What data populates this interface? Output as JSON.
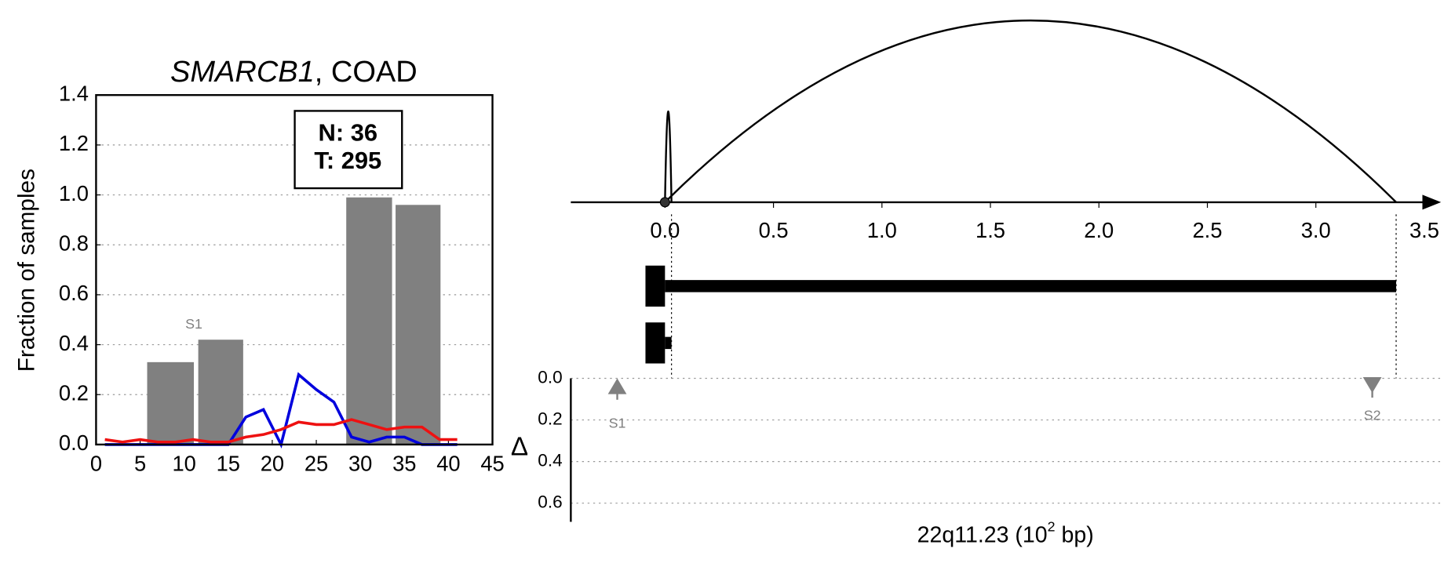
{
  "chart_data": [
    {
      "type": "bar_line",
      "title": [
        "SMARCB1",
        ", COAD"
      ],
      "ylabel": "Fraction of samples",
      "annotation_lines": [
        "N: 36",
        "T: 295"
      ],
      "bar_annotation": {
        "text": "S1",
        "x": 11.1,
        "y": 0.48
      },
      "bar_edges": [
        [
          5.8,
          11.1
        ],
        [
          11.6,
          16.7
        ],
        [
          28.4,
          33.6
        ],
        [
          34.0,
          39.1
        ]
      ],
      "bar_values": [
        0.33,
        0.42,
        0.99,
        0.96
      ],
      "bar_color": "#808080",
      "x": [
        1,
        3,
        5,
        7,
        9,
        11,
        13,
        15,
        17,
        19,
        21,
        23,
        25,
        27,
        29,
        31,
        33,
        35,
        37,
        39,
        41
      ],
      "series": [
        {
          "color": "#0000dd",
          "values": [
            0,
            0,
            0,
            0,
            0,
            0,
            0,
            0,
            0.11,
            0.14,
            0,
            0.28,
            0.22,
            0.17,
            0.03,
            0.01,
            0.03,
            0.03,
            0,
            0,
            0
          ]
        },
        {
          "color": "#ee1111",
          "values": [
            0.02,
            0.01,
            0.02,
            0.01,
            0.01,
            0.02,
            0.01,
            0.01,
            0.03,
            0.04,
            0.06,
            0.09,
            0.08,
            0.08,
            0.1,
            0.08,
            0.06,
            0.07,
            0.07,
            0.02,
            0.02
          ]
        }
      ],
      "xlim": [
        0,
        45
      ],
      "xticks": [
        0,
        5,
        10,
        15,
        20,
        25,
        30,
        35,
        40,
        45
      ],
      "ylim": [
        0,
        1.4
      ],
      "yticks": [
        {
          "value": 0,
          "label": "0.0"
        },
        {
          "value": 0.2,
          "label": "0.2"
        },
        {
          "value": 0.4,
          "label": "0.4"
        },
        {
          "value": 0.6,
          "label": "0.6"
        },
        {
          "value": 0.8,
          "label": "0.8"
        },
        {
          "value": 1.0,
          "label": "1.0"
        },
        {
          "value": 1.2,
          "label": "1.2"
        },
        {
          "value": 1.4,
          "label": "1.4"
        }
      ],
      "grid": true
    },
    {
      "type": "arc",
      "xlabel": [
        "22q11.23 (10",
        "2",
        " bp)"
      ],
      "ylabel": "Δ",
      "xlim": [
        -0.434,
        3.577
      ],
      "xticks": [
        {
          "value": 0,
          "label": "0.0"
        },
        {
          "value": 0.5,
          "label": "0.5"
        },
        {
          "value": 1.0,
          "label": "1.0"
        },
        {
          "value": 1.5,
          "label": "1.5"
        },
        {
          "value": 2.0,
          "label": "2.0"
        },
        {
          "value": 2.5,
          "label": "2.5"
        },
        {
          "value": 3.0,
          "label": "3.0"
        },
        {
          "value": 3.5,
          "label": "3.5"
        }
      ],
      "arcs": [
        {
          "start": 0,
          "end": 3.37,
          "height": 1
        },
        {
          "start": 0,
          "end": 0.03,
          "height": 0.5
        }
      ],
      "transcripts": [
        {
          "start": -0.09,
          "block_end": 0.0,
          "end": 3.37
        },
        {
          "start": -0.09,
          "block_end": 0.0,
          "end": 0.03
        }
      ],
      "guides": [
        0.03,
        3.37
      ],
      "markers": [
        {
          "label": "S1",
          "x": -0.22,
          "delta": 0.04,
          "direction": "up"
        },
        {
          "label": "S2",
          "x": 3.26,
          "delta": 0.03,
          "direction": "down"
        }
      ],
      "ylim": [
        0,
        0.69
      ],
      "y_inverted": true,
      "yticks": [
        {
          "value": 0,
          "label": "0.0"
        },
        {
          "value": 0.2,
          "label": "0.2"
        },
        {
          "value": 0.4,
          "label": "0.4"
        },
        {
          "value": 0.6,
          "label": "0.6"
        }
      ],
      "grid": true
    }
  ]
}
